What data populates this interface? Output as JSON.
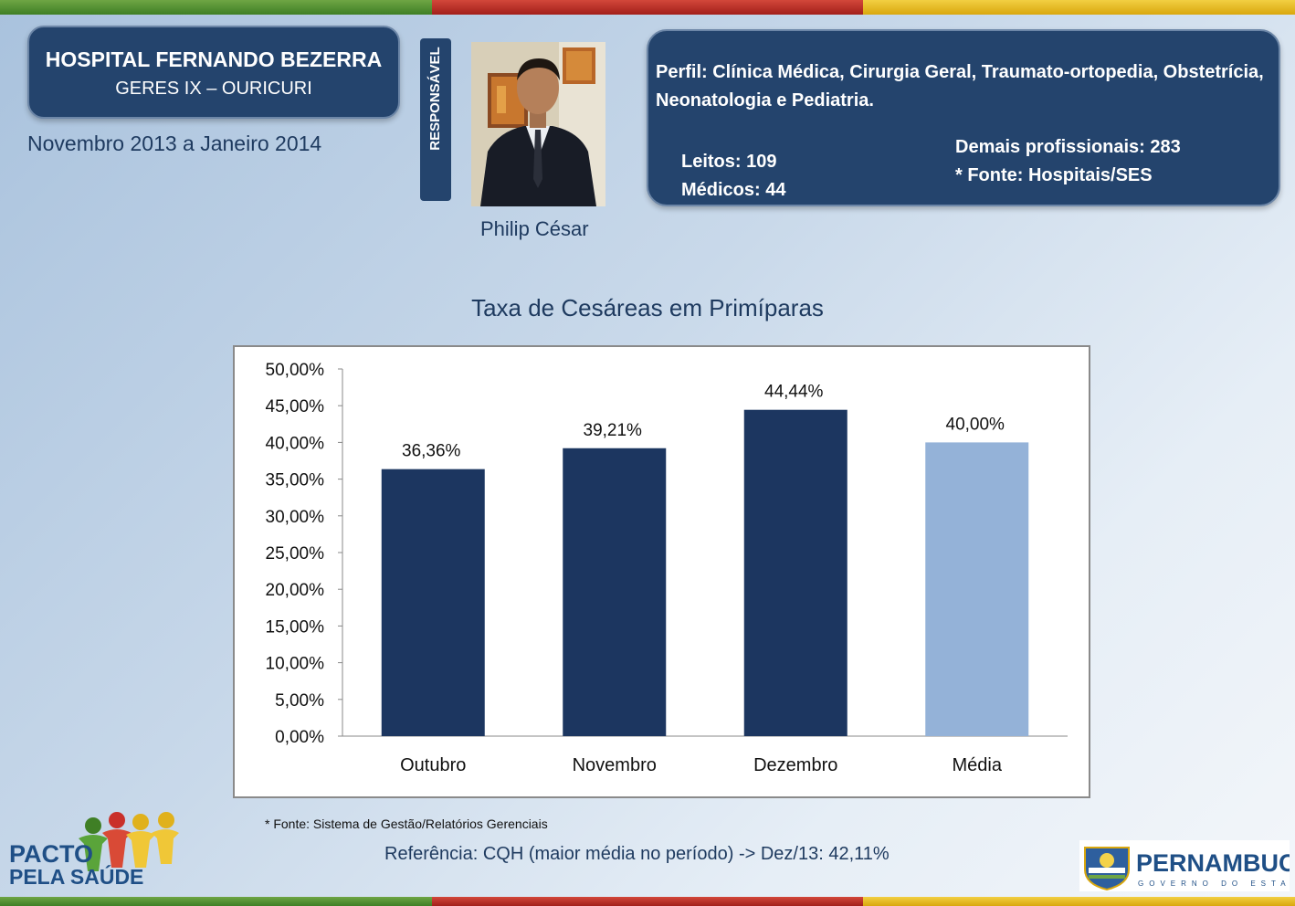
{
  "header": {
    "hospital_name": "HOSPITAL FERNANDO BEZERRA",
    "geres": "GERES IX – OURICURI",
    "period": "Novembro 2013 a Janeiro 2014"
  },
  "responsible": {
    "label": "RESPONSÁVEL",
    "name": "Philip César"
  },
  "profile": {
    "perfil": "Perfil: Clínica Médica, Cirurgia Geral, Traumato-ortopedia, Obstetrícia, Neonatologia e Pediatria.",
    "leitos": "Leitos: 109",
    "medicos": "Médicos: 44",
    "demais": "Demais profissionais: 283",
    "fonte": "* Fonte: Hospitais/SES"
  },
  "chart_title": "Taxa de Cesáreas em Primíparas",
  "chart_data": {
    "type": "bar",
    "categories": [
      "Outubro",
      "Novembro",
      "Dezembro",
      "Média"
    ],
    "values": [
      36.36,
      39.21,
      44.44,
      40.0
    ],
    "data_labels": [
      "36,36%",
      "39,21%",
      "44,44%",
      "40,00%"
    ],
    "bar_colors": [
      "#1c3660",
      "#1c3660",
      "#1c3660",
      "#94b2d8"
    ],
    "ylim": [
      0,
      50
    ],
    "yticks": [
      "0,00%",
      "5,00%",
      "10,00%",
      "15,00%",
      "20,00%",
      "25,00%",
      "30,00%",
      "35,00%",
      "40,00%",
      "45,00%",
      "50,00%"
    ],
    "grid": false,
    "legend": "none"
  },
  "footer": {
    "fonte": "* Fonte: Sistema de Gestão/Relatórios Gerenciais",
    "referencia": "Referência: CQH  (maior média no período) -> Dez/13: 42,11%"
  },
  "logos": {
    "pacto_line1": "PACTO",
    "pacto_line2": "PELA SAÚDE",
    "pe_name": "PERNAMBUCO",
    "pe_sub": "GOVERNO DO ESTADO"
  },
  "colors": {
    "navy": "#24446d",
    "bar_dark": "#1c3660",
    "bar_light": "#94b2d8",
    "brand_green": "#3f7f25",
    "brand_red": "#a21f1a",
    "brand_yellow": "#d9a70e"
  }
}
